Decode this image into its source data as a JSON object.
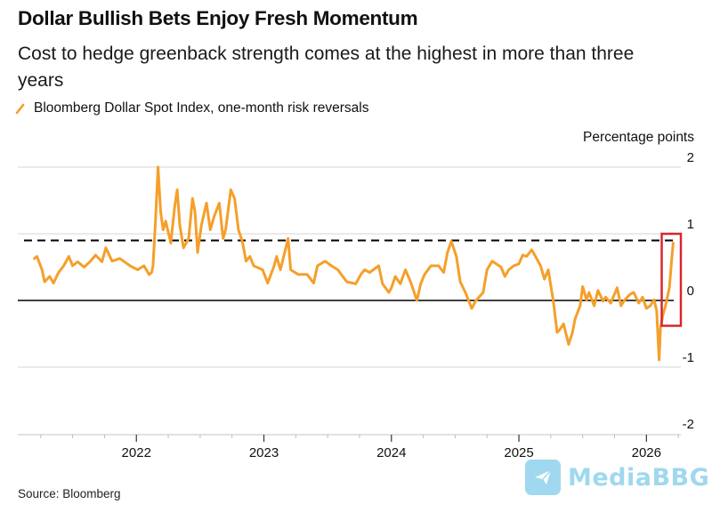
{
  "chart_data": {
    "type": "line",
    "title": "Dollar Bullish Bets Enjoy Fresh Momentum",
    "subtitle": "Cost to hedge greenback strength comes at the highest in more than three years",
    "legend": [
      {
        "name": "Bloomberg Dollar Spot Index, one-month risk reversals",
        "color": "#f59f2a",
        "placement": "top-left"
      }
    ],
    "ylabel": "Percentage points",
    "xlabel": "",
    "ylim": [
      -2,
      2
    ],
    "yticks": [
      2,
      1,
      0,
      -1,
      -2
    ],
    "xlim": [
      2021.07,
      2026.27
    ],
    "xticks": [
      2022,
      2023,
      2024,
      2025,
      2026
    ],
    "xtick_labels": [
      "2022",
      "2023",
      "2024",
      "2025",
      "2026"
    ],
    "minor_xticks_per_year": 3,
    "grid": true,
    "reference_lines": [
      {
        "name": "zero-line",
        "value": 0,
        "style": "solid",
        "color": "#000000"
      },
      {
        "name": "three-year-high-line",
        "value": 0.9,
        "style": "dashed",
        "color": "#000000"
      }
    ],
    "highlight_box": {
      "x_range": [
        2026.12,
        2026.27
      ],
      "y_range": [
        -0.38,
        1.0
      ],
      "color": "#d9262c"
    },
    "series": [
      {
        "name": "Bloomberg Dollar Spot Index, one-month risk reversals",
        "color": "#f59f2a",
        "points": [
          [
            2021.2,
            0.63
          ],
          [
            2021.22,
            0.66
          ],
          [
            2021.26,
            0.46
          ],
          [
            2021.28,
            0.28
          ],
          [
            2021.32,
            0.36
          ],
          [
            2021.35,
            0.26
          ],
          [
            2021.39,
            0.42
          ],
          [
            2021.43,
            0.52
          ],
          [
            2021.47,
            0.66
          ],
          [
            2021.5,
            0.52
          ],
          [
            2021.54,
            0.58
          ],
          [
            2021.59,
            0.5
          ],
          [
            2021.64,
            0.59
          ],
          [
            2021.68,
            0.68
          ],
          [
            2021.73,
            0.58
          ],
          [
            2021.76,
            0.79
          ],
          [
            2021.81,
            0.59
          ],
          [
            2021.87,
            0.63
          ],
          [
            2021.95,
            0.52
          ],
          [
            2022.01,
            0.46
          ],
          [
            2022.06,
            0.52
          ],
          [
            2022.1,
            0.39
          ],
          [
            2022.12,
            0.42
          ],
          [
            2022.13,
            0.52
          ],
          [
            2022.15,
            1.19
          ],
          [
            2022.17,
            2.0
          ],
          [
            2022.19,
            1.33
          ],
          [
            2022.21,
            1.06
          ],
          [
            2022.23,
            1.19
          ],
          [
            2022.27,
            0.86
          ],
          [
            2022.3,
            1.4
          ],
          [
            2022.32,
            1.66
          ],
          [
            2022.34,
            1.13
          ],
          [
            2022.37,
            0.79
          ],
          [
            2022.41,
            0.93
          ],
          [
            2022.44,
            1.53
          ],
          [
            2022.46,
            1.33
          ],
          [
            2022.48,
            0.72
          ],
          [
            2022.51,
            1.13
          ],
          [
            2022.55,
            1.46
          ],
          [
            2022.58,
            1.06
          ],
          [
            2022.61,
            1.26
          ],
          [
            2022.65,
            1.46
          ],
          [
            2022.68,
            0.93
          ],
          [
            2022.7,
            1.06
          ],
          [
            2022.74,
            1.66
          ],
          [
            2022.77,
            1.53
          ],
          [
            2022.8,
            1.06
          ],
          [
            2022.83,
            0.89
          ],
          [
            2022.86,
            0.59
          ],
          [
            2022.89,
            0.66
          ],
          [
            2022.92,
            0.52
          ],
          [
            2022.99,
            0.46
          ],
          [
            2023.03,
            0.26
          ],
          [
            2023.08,
            0.52
          ],
          [
            2023.1,
            0.66
          ],
          [
            2023.13,
            0.46
          ],
          [
            2023.19,
            0.93
          ],
          [
            2023.21,
            0.46
          ],
          [
            2023.27,
            0.39
          ],
          [
            2023.34,
            0.39
          ],
          [
            2023.39,
            0.26
          ],
          [
            2023.42,
            0.52
          ],
          [
            2023.48,
            0.59
          ],
          [
            2023.53,
            0.52
          ],
          [
            2023.58,
            0.46
          ],
          [
            2023.65,
            0.28
          ],
          [
            2023.72,
            0.25
          ],
          [
            2023.76,
            0.39
          ],
          [
            2023.79,
            0.46
          ],
          [
            2023.83,
            0.42
          ],
          [
            2023.9,
            0.52
          ],
          [
            2023.93,
            0.25
          ],
          [
            2023.98,
            0.12
          ],
          [
            2024.0,
            0.19
          ],
          [
            2024.03,
            0.36
          ],
          [
            2024.07,
            0.25
          ],
          [
            2024.11,
            0.46
          ],
          [
            2024.15,
            0.28
          ],
          [
            2024.2,
            0.0
          ],
          [
            2024.23,
            0.25
          ],
          [
            2024.26,
            0.39
          ],
          [
            2024.31,
            0.52
          ],
          [
            2024.37,
            0.52
          ],
          [
            2024.41,
            0.42
          ],
          [
            2024.44,
            0.72
          ],
          [
            2024.47,
            0.89
          ],
          [
            2024.51,
            0.66
          ],
          [
            2024.54,
            0.28
          ],
          [
            2024.58,
            0.12
          ],
          [
            2024.63,
            -0.12
          ],
          [
            2024.66,
            -0.01
          ],
          [
            2024.72,
            0.12
          ],
          [
            2024.75,
            0.46
          ],
          [
            2024.79,
            0.59
          ],
          [
            2024.86,
            0.5
          ],
          [
            2024.89,
            0.36
          ],
          [
            2024.92,
            0.46
          ],
          [
            2024.96,
            0.52
          ],
          [
            2025.0,
            0.55
          ],
          [
            2025.03,
            0.68
          ],
          [
            2025.06,
            0.66
          ],
          [
            2025.1,
            0.76
          ],
          [
            2025.13,
            0.66
          ],
          [
            2025.17,
            0.52
          ],
          [
            2025.2,
            0.32
          ],
          [
            2025.23,
            0.46
          ],
          [
            2025.27,
            -0.01
          ],
          [
            2025.3,
            -0.48
          ],
          [
            2025.32,
            -0.44
          ],
          [
            2025.35,
            -0.35
          ],
          [
            2025.39,
            -0.66
          ],
          [
            2025.42,
            -0.48
          ],
          [
            2025.44,
            -0.28
          ],
          [
            2025.48,
            -0.08
          ],
          [
            2025.5,
            0.21
          ],
          [
            2025.53,
            0.01
          ],
          [
            2025.55,
            0.12
          ],
          [
            2025.59,
            -0.08
          ],
          [
            2025.62,
            0.15
          ],
          [
            2025.66,
            -0.01
          ],
          [
            2025.68,
            0.05
          ],
          [
            2025.72,
            -0.04
          ],
          [
            2025.77,
            0.19
          ],
          [
            2025.8,
            -0.08
          ],
          [
            2025.83,
            0.01
          ],
          [
            2025.87,
            0.09
          ],
          [
            2025.9,
            0.12
          ],
          [
            2025.94,
            -0.04
          ],
          [
            2025.97,
            0.05
          ],
          [
            2026.0,
            -0.12
          ],
          [
            2026.03,
            -0.08
          ],
          [
            2026.06,
            0.01
          ],
          [
            2026.08,
            -0.15
          ],
          [
            2026.1,
            -0.89
          ],
          [
            2026.11,
            -0.41
          ],
          [
            2026.13,
            -0.21
          ],
          [
            2026.15,
            -0.08
          ],
          [
            2026.18,
            0.19
          ],
          [
            2026.2,
            0.66
          ],
          [
            2026.21,
            0.86
          ]
        ]
      }
    ]
  },
  "labels": {
    "unit": "Percentage points",
    "source": "Source: Bloomberg",
    "watermark": "MediaBBG"
  }
}
